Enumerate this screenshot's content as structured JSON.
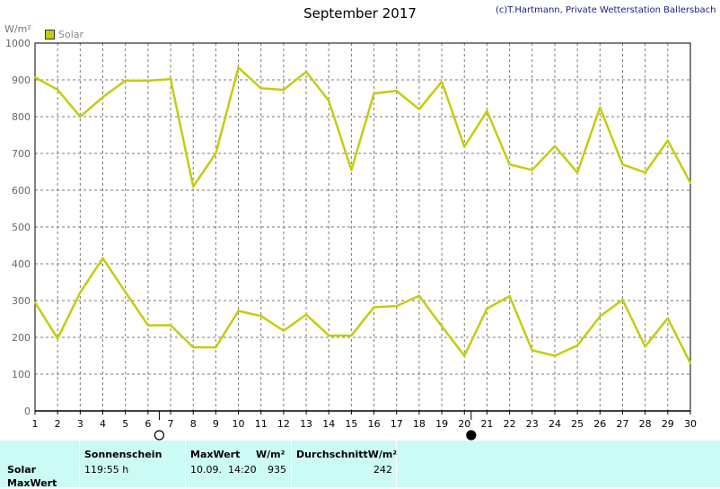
{
  "header": {
    "title": "September 2017",
    "copyright": "(c)T.Hartmann, Private Wetterstation Ballersbach",
    "unit": "W/m²",
    "legend": "Solar"
  },
  "colors": {
    "series": "#c4cc10",
    "grid": "#7a7a7a",
    "footer_bg": "#ccfbf5"
  },
  "moon_icons": [
    {
      "icon": "full-moon-icon",
      "day": 6.5
    },
    {
      "icon": "new-moon-icon",
      "day": 20.3
    }
  ],
  "chart_data": {
    "type": "line",
    "x": [
      1,
      2,
      3,
      4,
      5,
      6,
      7,
      8,
      9,
      10,
      11,
      12,
      13,
      14,
      15,
      16,
      17,
      18,
      19,
      20,
      21,
      22,
      23,
      24,
      25,
      26,
      27,
      28,
      29,
      30
    ],
    "xlim": [
      1,
      30
    ],
    "ylim": [
      0,
      1000
    ],
    "yticks": [
      0,
      100,
      200,
      300,
      400,
      500,
      600,
      700,
      800,
      900,
      1000
    ],
    "grid": true,
    "legend_position": "top-left",
    "series": [
      {
        "name": "Solar",
        "values": [
          907,
          873,
          800,
          853,
          898,
          898,
          902,
          610,
          700,
          933,
          877,
          873,
          922,
          843,
          655,
          863,
          870,
          820,
          895,
          718,
          815,
          670,
          655,
          720,
          648,
          825,
          670,
          648,
          735,
          620
        ]
      },
      {
        "values": [
          295,
          197,
          322,
          415,
          323,
          233,
          233,
          173,
          173,
          272,
          258,
          218,
          262,
          205,
          205,
          282,
          285,
          313,
          230,
          150,
          278,
          312,
          165,
          150,
          178,
          257,
          302,
          175,
          252,
          130
        ]
      }
    ]
  },
  "footer": {
    "row_labels": [
      "Solar",
      "MaxWert"
    ],
    "sonnenschein_header": "Sonnenschein",
    "sonnenschein_value": "119:55 h",
    "maxwert_header": "MaxWert",
    "maxwert_unit": "W/m²",
    "maxwert_date": "10.09.  14:20",
    "maxwert_value": "935",
    "durchschnitt_header": "DurchschnittW/m²",
    "durchschnitt_value": "242"
  }
}
